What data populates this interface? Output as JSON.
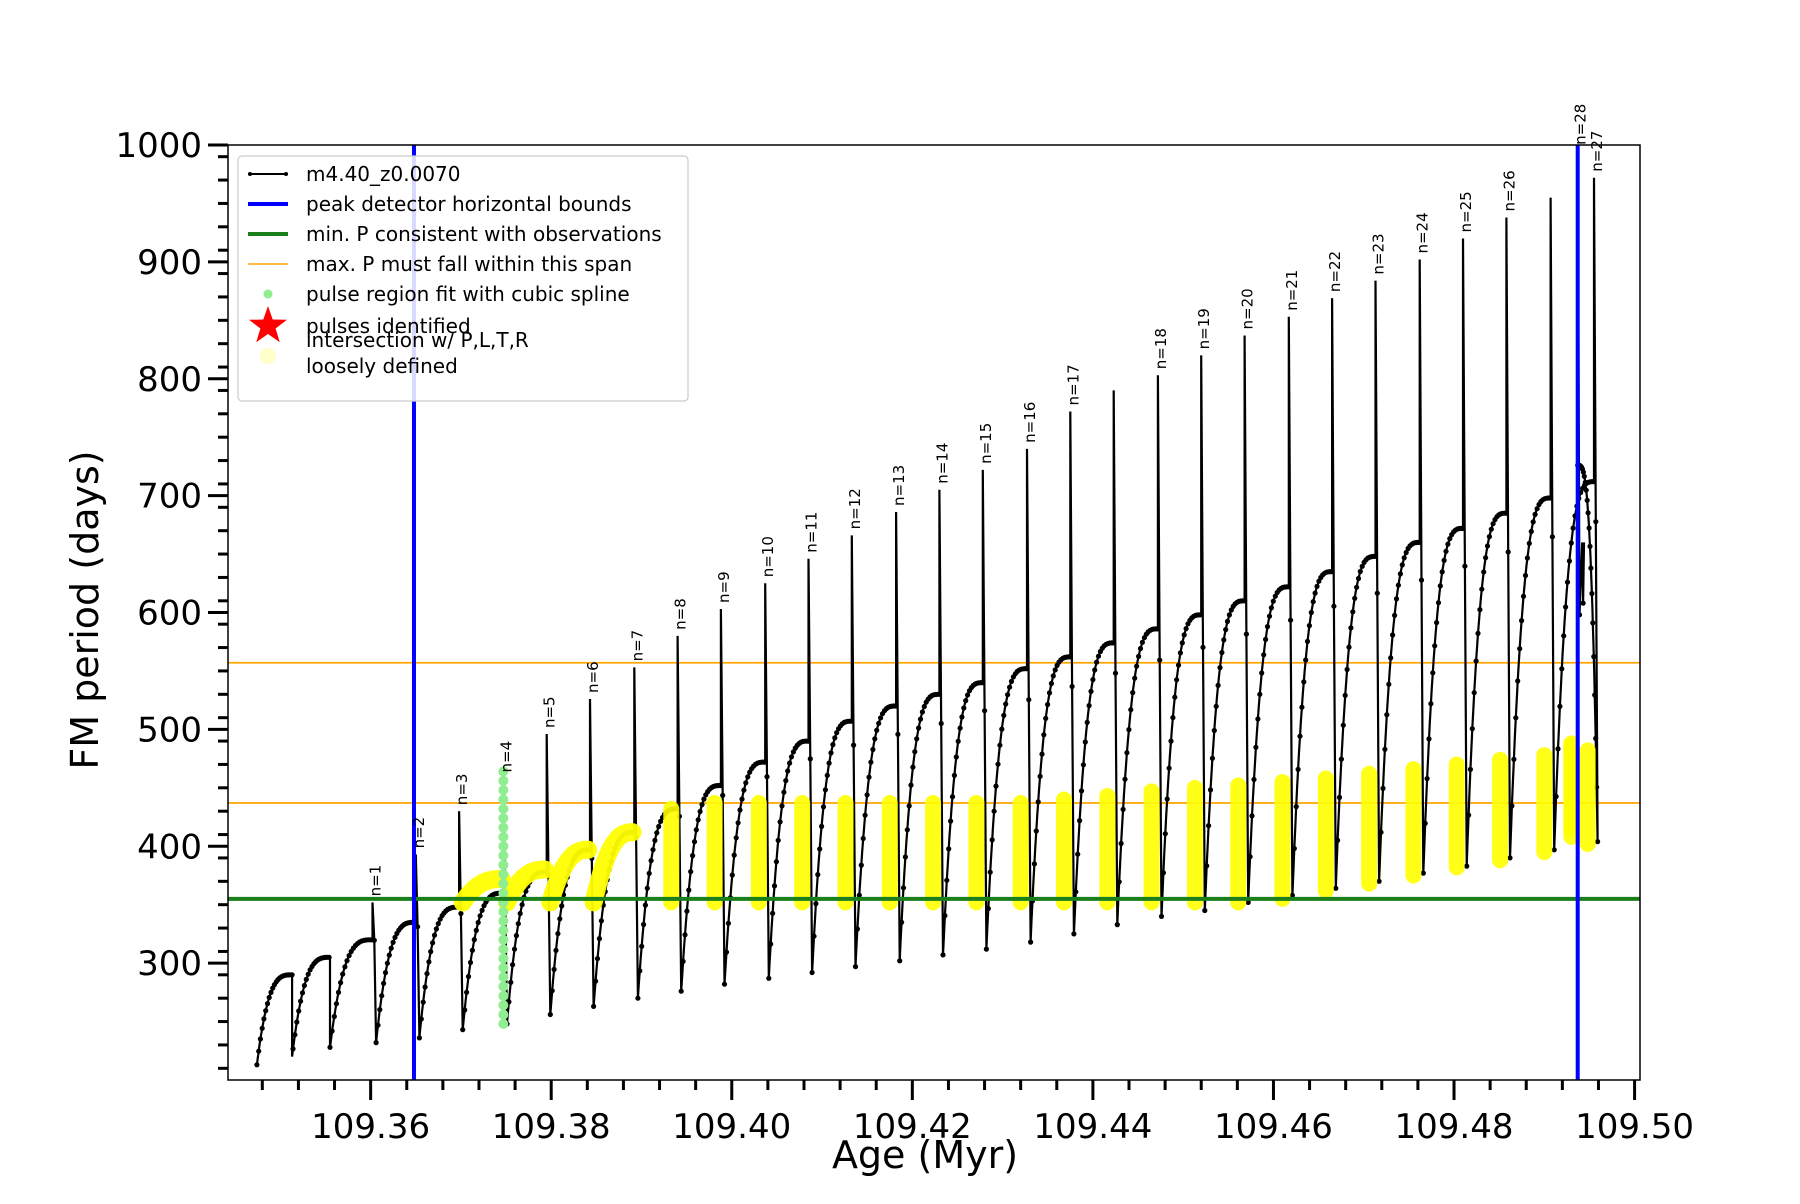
{
  "chart_data": {
    "type": "line",
    "xlabel": "Age (Myr)",
    "ylabel": "FM period (days)",
    "xlim": [
      109.3442,
      109.5006
    ],
    "ylim": [
      200,
      1000
    ],
    "xticks": [
      109.36,
      109.38,
      109.4,
      109.42,
      109.44,
      109.46,
      109.48,
      109.5
    ],
    "xtick_labels": [
      "109.36",
      "109.38",
      "109.40",
      "109.42",
      "109.44",
      "109.46",
      "109.48",
      "109.50"
    ],
    "yticks": [
      300,
      400,
      500,
      600,
      700,
      800,
      900,
      1000
    ],
    "ytick_labels": [
      "300",
      "400",
      "500",
      "600",
      "700",
      "800",
      "900",
      "1000"
    ],
    "legend_position": "upper-left",
    "legend": [
      {
        "label": "m4.40_z0.0070",
        "kind": "line-marker",
        "color": "#000000"
      },
      {
        "label": "peak detector horizontal bounds",
        "kind": "thick-line",
        "color": "#0000ff"
      },
      {
        "label": "min. P consistent with observations",
        "kind": "thick-line",
        "color": "#1a7f1a"
      },
      {
        "label": "max. P must fall within this span",
        "kind": "thin-line",
        "color": "#ffa500"
      },
      {
        "label": "pulse region fit with cubic spline",
        "kind": "dot",
        "color": "#90ee90"
      },
      {
        "label": "pulses identified",
        "kind": "star",
        "color": "#ff0000"
      },
      {
        "label": "intersection w/ P,L,T,R\nloosely defined",
        "kind": "dot-large",
        "color": "#ffffcc"
      }
    ],
    "vlines": [
      109.3648,
      109.4937
    ],
    "vline_color": "#0000ff",
    "hline_min": 355,
    "hline_min_color": "#1a7f1a",
    "hlines_max": [
      437,
      557
    ],
    "hlines_max_color": "#ffa500",
    "series_color": "#000000",
    "spline_color": "#90ee90",
    "intersection_color": "#ffff00",
    "pre_pulses": [
      {
        "x0": 109.3474,
        "x1": 109.3513,
        "top": 290,
        "bottom": 213
      },
      {
        "x0": 109.3513,
        "x1": 109.3555,
        "top": 305,
        "bottom": 220
      },
      {
        "x0": 109.3555,
        "x1": 109.3602,
        "top": 320,
        "bottom": 228
      }
    ],
    "pulses": [
      {
        "n": "n=1",
        "x": 109.3602,
        "peak": 352,
        "bottom": 232,
        "top": 335,
        "yel_min": null,
        "yel_max": null
      },
      {
        "n": "n=2",
        "x": 109.365,
        "peak": 393,
        "bottom": 236,
        "top": 348,
        "yel_min": null,
        "yel_max": null
      },
      {
        "n": "n=3",
        "x": 109.3698,
        "peak": 430,
        "bottom": 243,
        "top": 360,
        "yel_min": 352,
        "yel_max": 372
      },
      {
        "n": "n=4",
        "x": 109.3747,
        "peak": 458,
        "bottom": 248,
        "top": 378,
        "yel_min": 352,
        "yel_max": 380
      },
      {
        "n": "n=5",
        "x": 109.3795,
        "peak": 496,
        "bottom": 256,
        "top": 397,
        "yel_min": 352,
        "yel_max": 397
      },
      {
        "n": "n=6",
        "x": 109.3843,
        "peak": 526,
        "bottom": 263,
        "top": 412,
        "yel_min": 352,
        "yel_max": 412
      },
      {
        "n": "n=7",
        "x": 109.3892,
        "peak": 553,
        "bottom": 270,
        "top": 432,
        "yel_min": 352,
        "yel_max": 432
      },
      {
        "n": "n=8",
        "x": 109.394,
        "peak": 580,
        "bottom": 276,
        "top": 452,
        "yel_min": 352,
        "yel_max": 437
      },
      {
        "n": "n=9",
        "x": 109.3988,
        "peak": 603,
        "bottom": 282,
        "top": 472,
        "yel_min": 352,
        "yel_max": 437
      },
      {
        "n": "n=10",
        "x": 109.4037,
        "peak": 625,
        "bottom": 287,
        "top": 490,
        "yel_min": 352,
        "yel_max": 437
      },
      {
        "n": "n=11",
        "x": 109.4085,
        "peak": 646,
        "bottom": 292,
        "top": 507,
        "yel_min": 352,
        "yel_max": 437
      },
      {
        "n": "n=12",
        "x": 109.4133,
        "peak": 666,
        "bottom": 297,
        "top": 520,
        "yel_min": 352,
        "yel_max": 437
      },
      {
        "n": "n=13",
        "x": 109.4182,
        "peak": 686,
        "bottom": 302,
        "top": 530,
        "yel_min": 352,
        "yel_max": 437
      },
      {
        "n": "n=14",
        "x": 109.423,
        "peak": 705,
        "bottom": 307,
        "top": 540,
        "yel_min": 352,
        "yel_max": 437
      },
      {
        "n": "n=15",
        "x": 109.4278,
        "peak": 722,
        "bottom": 312,
        "top": 552,
        "yel_min": 352,
        "yel_max": 437
      },
      {
        "n": "n=16",
        "x": 109.4327,
        "peak": 740,
        "bottom": 318,
        "top": 562,
        "yel_min": 352,
        "yel_max": 440
      },
      {
        "n": "n=17",
        "x": 109.4375,
        "peak": 772,
        "bottom": 325,
        "top": 574,
        "yel_min": 352,
        "yel_max": 443
      },
      {
        "n": "",
        "x": 109.4423,
        "peak": 790,
        "bottom": 333,
        "top": 586,
        "yel_min": 352,
        "yel_max": 447
      },
      {
        "n": "n=18",
        "x": 109.4472,
        "peak": 803,
        "bottom": 340,
        "top": 598,
        "yel_min": 352,
        "yel_max": 450
      },
      {
        "n": "n=19",
        "x": 109.452,
        "peak": 820,
        "bottom": 345,
        "top": 610,
        "yel_min": 352,
        "yel_max": 452
      },
      {
        "n": "n=20",
        "x": 109.4568,
        "peak": 837,
        "bottom": 352,
        "top": 622,
        "yel_min": 355,
        "yel_max": 455
      },
      {
        "n": "n=21",
        "x": 109.4617,
        "peak": 853,
        "bottom": 358,
        "top": 635,
        "yel_min": 362,
        "yel_max": 458
      },
      {
        "n": "n=22",
        "x": 109.4665,
        "peak": 869,
        "bottom": 364,
        "top": 648,
        "yel_min": 368,
        "yel_max": 462
      },
      {
        "n": "n=23",
        "x": 109.4713,
        "peak": 884,
        "bottom": 370,
        "top": 660,
        "yel_min": 375,
        "yel_max": 466
      },
      {
        "n": "n=24",
        "x": 109.4762,
        "peak": 902,
        "bottom": 377,
        "top": 672,
        "yel_min": 382,
        "yel_max": 470
      },
      {
        "n": "n=25",
        "x": 109.481,
        "peak": 920,
        "bottom": 383,
        "top": 685,
        "yel_min": 388,
        "yel_max": 474
      },
      {
        "n": "n=26",
        "x": 109.4858,
        "peak": 938,
        "bottom": 390,
        "top": 698,
        "yel_min": 395,
        "yel_max": 478
      },
      {
        "n": "",
        "x": 109.4907,
        "peak": 955,
        "bottom": 397,
        "top": 712,
        "yel_min": 402,
        "yel_max": 482
      },
      {
        "n": "n=27",
        "x": 109.4955,
        "peak": 972,
        "bottom": 404,
        "top": 726,
        "yel_min": 408,
        "yel_max": 486
      },
      {
        "n": "n=28",
        "x": 109.4937,
        "peak": 995,
        "bottom": 598,
        "top": 660,
        "yel_min": 415,
        "yel_max": 488
      }
    ],
    "green_spline": {
      "x": 109.3747,
      "min": 248,
      "max": 465
    }
  }
}
